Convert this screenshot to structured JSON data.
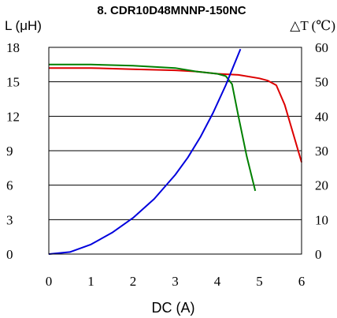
{
  "chart_data": {
    "type": "line",
    "title": "8. CDR10D48MNNP-150NC",
    "xlabel": "DC (A)",
    "ylabel_left": "L (μH)",
    "ylabel_right": "△T (℃)",
    "xlim": [
      0,
      6
    ],
    "ylim_left": [
      0,
      18
    ],
    "ylim_right": [
      0,
      60
    ],
    "x_ticks": [
      "0",
      "1",
      "2",
      "3",
      "4",
      "5",
      "6"
    ],
    "y_left_ticks": [
      "0",
      "3",
      "6",
      "9",
      "12",
      "15",
      "18"
    ],
    "y_right_ticks": [
      "0",
      "10",
      "20",
      "30",
      "40",
      "50",
      "60"
    ],
    "grid": true,
    "legend": "none",
    "series": [
      {
        "axis": "left",
        "color": "#dd0000",
        "x": [
          0,
          1,
          2,
          3,
          3.5,
          4,
          4.5,
          5,
          5.2,
          5.4,
          5.6,
          5.8,
          6
        ],
        "y": [
          16.2,
          16.2,
          16.1,
          16.0,
          15.9,
          15.7,
          15.6,
          15.3,
          15.1,
          14.7,
          13.0,
          10.5,
          8.0
        ]
      },
      {
        "axis": "left",
        "color": "#008000",
        "x": [
          0,
          1,
          2,
          3,
          3.5,
          4,
          4.2,
          4.35,
          4.5,
          4.7,
          4.9
        ],
        "y": [
          16.5,
          16.5,
          16.4,
          16.2,
          15.9,
          15.7,
          15.5,
          14.8,
          12.0,
          8.5,
          5.5
        ]
      },
      {
        "axis": "right",
        "color": "#0000dd",
        "x": [
          0,
          0.5,
          1,
          1.5,
          2,
          2.5,
          3,
          3.3,
          3.6,
          3.9,
          4.2,
          4.4,
          4.55
        ],
        "y": [
          0,
          0.6,
          2.8,
          6.2,
          10.5,
          16.0,
          23.0,
          28.0,
          34.0,
          41.0,
          49.0,
          55.0,
          59.5
        ]
      }
    ]
  }
}
